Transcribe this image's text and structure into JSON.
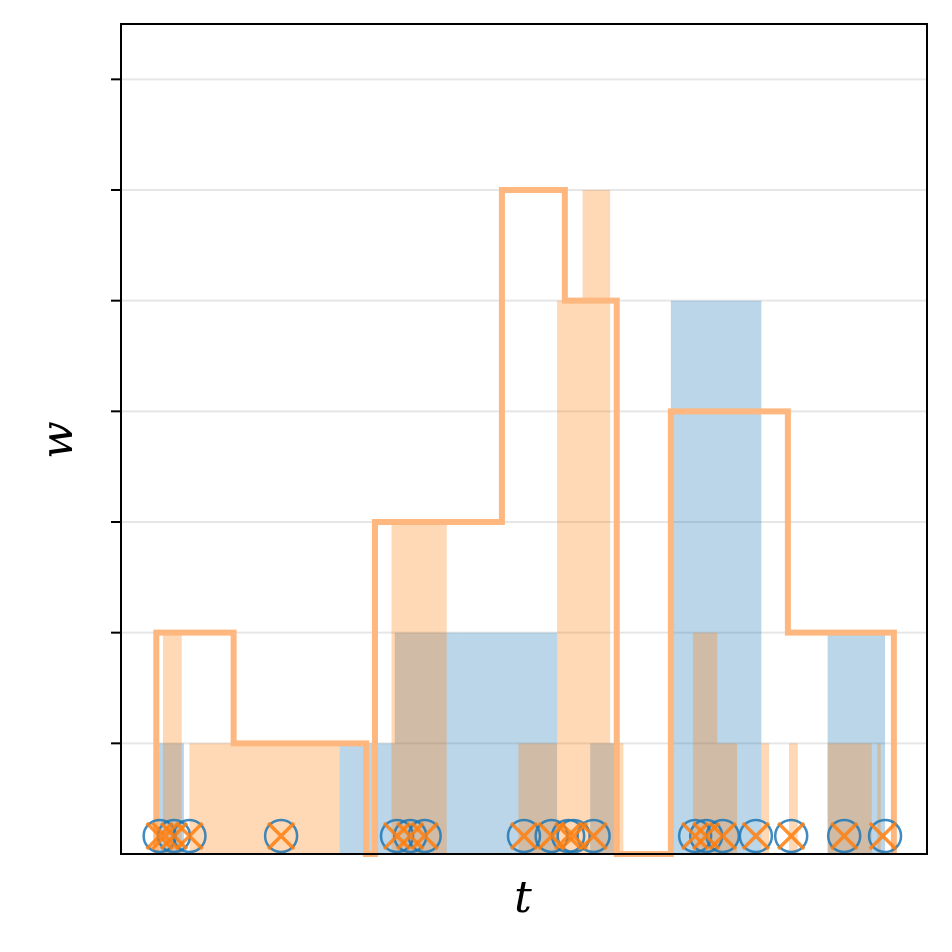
{
  "chart_data": {
    "type": "histogram-step",
    "xlabel": "t",
    "ylabel": "w",
    "ylim": [
      0,
      7.5
    ],
    "xlim": [
      0,
      7.3
    ],
    "yticks": [
      1,
      2,
      3,
      4,
      5,
      6,
      7
    ],
    "grid": true,
    "colors": {
      "blue": "#1f77b4",
      "orange": "#ff7f0e",
      "blue_fill": "#bad6ea",
      "orange_fill": "#ffd8b2",
      "overlap_fill": "#d0b9a6",
      "orange_step": "#fdb77f",
      "grid": "#e6e6e6"
    },
    "series": [
      {
        "name": "",
        "color": "blue",
        "bars": [
          {
            "x0": 0.3,
            "x1": 0.57,
            "h": 1
          },
          {
            "x0": 1.98,
            "x1": 2.27,
            "h": 1
          },
          {
            "x0": 2.27,
            "x1": 2.48,
            "h": 1
          },
          {
            "x0": 2.48,
            "x1": 2.57,
            "h": 2
          },
          {
            "x0": 2.57,
            "x1": 3.05,
            "h": 2
          },
          {
            "x0": 3.05,
            "x1": 3.6,
            "h": 2
          },
          {
            "x0": 3.6,
            "x1": 3.95,
            "h": 2
          },
          {
            "x0": 4.25,
            "x1": 4.48,
            "h": 1
          },
          {
            "x0": 4.98,
            "x1": 5.18,
            "h": 5
          },
          {
            "x0": 5.18,
            "x1": 5.8,
            "h": 5
          },
          {
            "x0": 6.4,
            "x1": 6.92,
            "h": 2
          }
        ]
      },
      {
        "name": "",
        "color": "orange",
        "bars": [
          {
            "x0": 0.38,
            "x1": 0.55,
            "h": 2
          },
          {
            "x0": 0.62,
            "x1": 1.98,
            "h": 1
          },
          {
            "x0": 2.45,
            "x1": 2.95,
            "h": 3
          },
          {
            "x0": 3.6,
            "x1": 3.95,
            "h": 1
          },
          {
            "x0": 3.95,
            "x1": 4.18,
            "h": 5
          },
          {
            "x0": 4.18,
            "x1": 4.43,
            "h": 6
          },
          {
            "x0": 4.43,
            "x1": 4.55,
            "h": 1
          },
          {
            "x0": 5.18,
            "x1": 5.4,
            "h": 2
          },
          {
            "x0": 5.4,
            "x1": 5.58,
            "h": 1
          },
          {
            "x0": 5.8,
            "x1": 5.87,
            "h": 1
          },
          {
            "x0": 6.05,
            "x1": 6.13,
            "h": 1
          },
          {
            "x0": 6.4,
            "x1": 6.8,
            "h": 1
          },
          {
            "x0": 6.85,
            "x1": 6.88,
            "h": 1
          }
        ]
      }
    ],
    "step": {
      "color": "orange_step",
      "edges": [
        0.32,
        1.02,
        2.22,
        2.3,
        3.45,
        4.02,
        4.49,
        4.98,
        6.04,
        7.0
      ],
      "heights": [
        2,
        1,
        0,
        3,
        6,
        5,
        0,
        4,
        2
      ]
    },
    "markers": {
      "circles_x": [
        0.35,
        0.48,
        0.62,
        1.45,
        2.5,
        2.62,
        2.75,
        3.65,
        3.9,
        4.05,
        4.1,
        4.28,
        5.2,
        5.3,
        5.45,
        5.75,
        6.07,
        6.55,
        6.92
      ],
      "crosses_x": [
        0.35,
        0.4,
        0.48,
        0.62,
        1.45,
        2.5,
        2.62,
        2.75,
        3.65,
        3.9,
        4.05,
        4.1,
        4.28,
        5.2,
        5.3,
        5.45,
        5.75,
        6.07,
        6.55,
        6.9
      ]
    }
  }
}
